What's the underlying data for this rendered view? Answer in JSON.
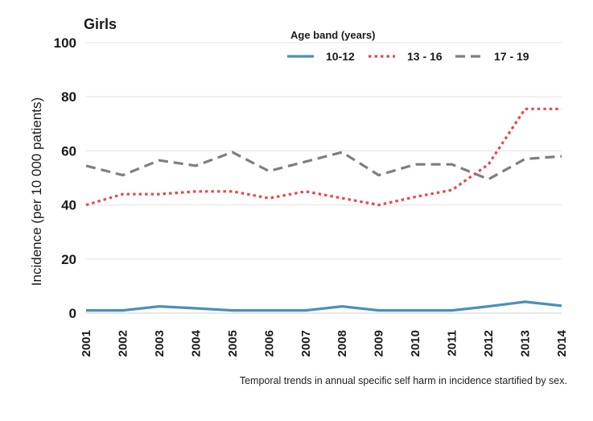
{
  "chart_data": {
    "type": "line",
    "title": "Girls",
    "xlabel": "",
    "ylabel": "Incidence (per 10 000 patients)",
    "ylim": [
      0,
      100
    ],
    "yticks": [
      0,
      20,
      40,
      60,
      80,
      100
    ],
    "grid": "horizontal",
    "legend_title": "Age band (years)",
    "legend_position": "top-right",
    "caption": "Temporal trends in annual specific self harm in incidence startified by sex.",
    "categories": [
      "2001",
      "2002",
      "2003",
      "2004",
      "2005",
      "2006",
      "2007",
      "2008",
      "2009",
      "2010",
      "2011",
      "2012",
      "2013",
      "2014"
    ],
    "series": [
      {
        "name": "10-12",
        "style": "solid",
        "color": "#4a90b8",
        "values": [
          1,
          1,
          2.5,
          1.8,
          1,
          1,
          1,
          2.5,
          1,
          1,
          1,
          2.5,
          4.2,
          2.7
        ]
      },
      {
        "name": "13 - 16",
        "style": "dotted",
        "color": "#e8474a",
        "values": [
          40,
          44,
          44,
          45,
          45,
          42.5,
          45,
          42.5,
          40,
          43,
          45.5,
          55,
          75.5,
          75.5
        ]
      },
      {
        "name": "17 - 19",
        "style": "dashed",
        "color": "#7f7f7f",
        "values": [
          54.5,
          51,
          56.5,
          54.5,
          59.5,
          52.5,
          56,
          59.5,
          51,
          55,
          55,
          49.5,
          57,
          58
        ]
      }
    ]
  }
}
